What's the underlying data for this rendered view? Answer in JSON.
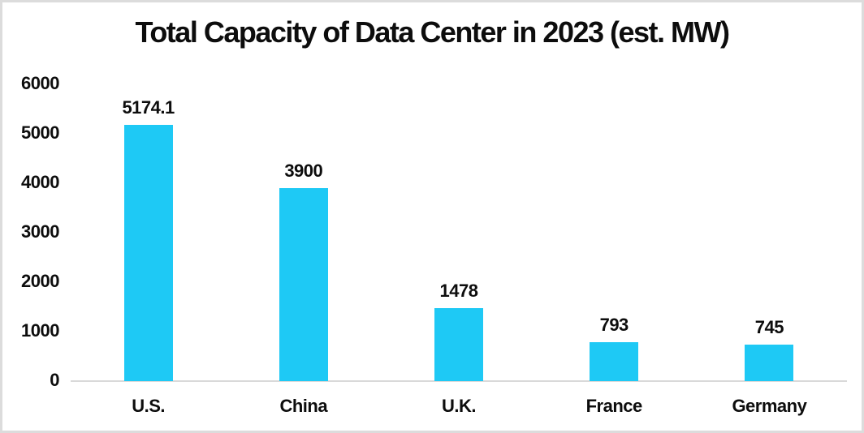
{
  "frame": {
    "background": "#ffffff",
    "border_color": "#dcdcdc"
  },
  "chart_data": {
    "type": "bar",
    "title": "Total Capacity of Data Center in 2023 (est. MW)",
    "categories": [
      "U.S.",
      "China",
      "U.K.",
      "France",
      "Germany"
    ],
    "values": [
      5174.1,
      3900,
      1478,
      793,
      745
    ],
    "value_labels": [
      "5174.1",
      "3900",
      "1478",
      "793",
      "745"
    ],
    "xlabel": "",
    "ylabel": "",
    "ylim": [
      0,
      6000
    ],
    "yticks": [
      0,
      1000,
      2000,
      3000,
      4000,
      5000,
      6000
    ],
    "grid": false,
    "legend": false,
    "bar_color": "#1ec9f5",
    "axis_line_color": "#d9d9d9",
    "text_color": "#0d0d0d"
  }
}
